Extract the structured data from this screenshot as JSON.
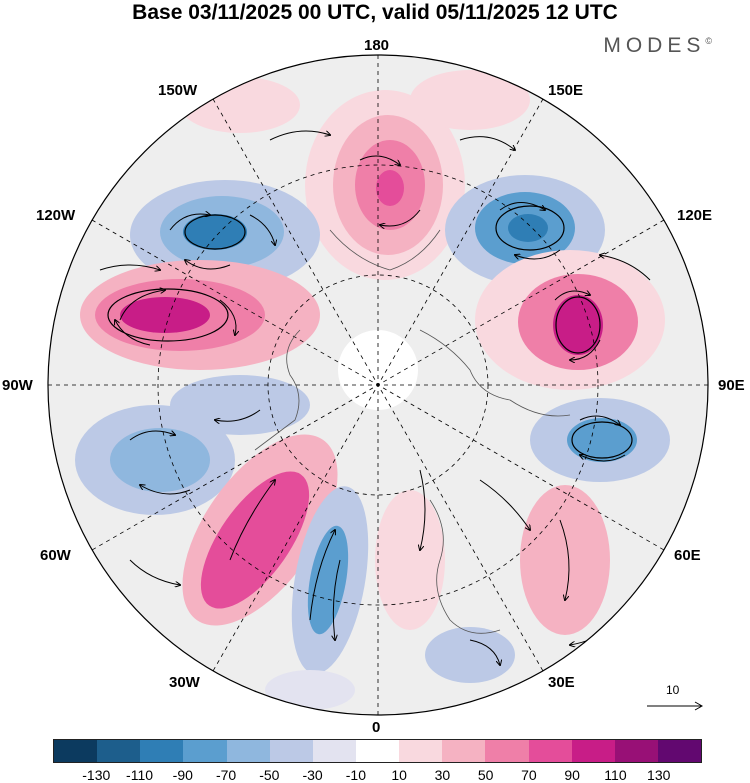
{
  "title": "Base 03/11/2025 00 UTC, valid 05/11/2025 12 UTC",
  "brand": "MODES",
  "brand_mark": "©",
  "longitude_labels": {
    "top": "180",
    "bottom": "0",
    "left": "90W",
    "right": "90E",
    "upper_left_1": "150W",
    "upper_left_2": "120W",
    "lower_left_1": "60W",
    "lower_left_2": "30W",
    "upper_right_1": "150E",
    "upper_right_2": "120E",
    "lower_right_1": "60E",
    "lower_right_2": "30E"
  },
  "reference_vector": {
    "value": "10"
  },
  "colorbar": {
    "colors": [
      "#0c3a5f",
      "#1d5e8c",
      "#2f7eb5",
      "#5b9ecf",
      "#8fb7de",
      "#bcc9e6",
      "#e3e3f0",
      "#ffffff",
      "#f9d9df",
      "#f5b2c2",
      "#ef7fa8",
      "#e44d9a",
      "#c81d87",
      "#981076",
      "#620870"
    ],
    "labels": [
      "-130",
      "-110",
      "-90",
      "-70",
      "-50",
      "-30",
      "-10",
      "10",
      "30",
      "50",
      "70",
      "90",
      "110",
      "130"
    ]
  }
}
